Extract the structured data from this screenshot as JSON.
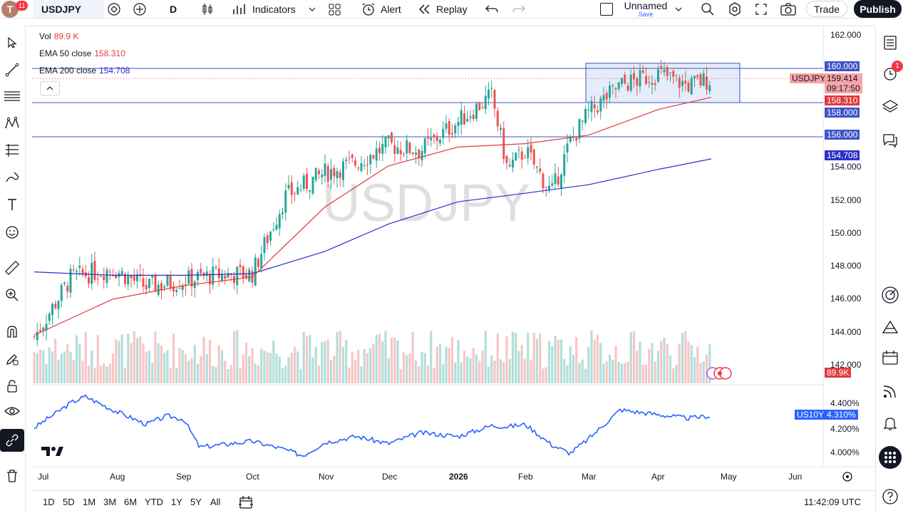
{
  "header": {
    "avatar_letter": "T",
    "notif_count": "11",
    "symbol": "USDJPY",
    "interval": "D",
    "indicators_label": "Indicators",
    "alert_label": "Alert",
    "replay_label": "Replay",
    "layout_name": "Unnamed",
    "save_label": "Save",
    "trade_label": "Trade",
    "publish_label": "Publish"
  },
  "legend": {
    "vol_label": "Vol",
    "vol_value": "89.9 K",
    "ema50_label": "EMA 50 close",
    "ema50_value": "158.310",
    "ema200_label": "EMA 200 close",
    "ema200_value": "154.708"
  },
  "watermark": "USDJPY",
  "colors": {
    "up": "#26a69a",
    "down": "#ef5350",
    "ema50": "#e03a3e",
    "ema200": "#2d2fc8",
    "hline": "#3e53c8",
    "rect_fill": "#dce6f8",
    "bond": "#2962ff"
  },
  "price_axis": [
    "162.000",
    "160.000",
    "159.414",
    "158.310",
    "158.000",
    "156.000",
    "154.708",
    "154.000",
    "152.000",
    "150.000",
    "148.000",
    "146.000",
    "144.000",
    "142.000"
  ],
  "tags": {
    "level_160": "160.000",
    "symbol": "USDJPY",
    "last_price": "159.414",
    "countdown": "09:17:50",
    "ema50": "158.310",
    "level_158": "158.000",
    "level_156": "156.000",
    "ema200": "154.708",
    "volume": "89.9K",
    "bond_symbol": "US10Y",
    "bond_value": "4.310%"
  },
  "bond_axis": [
    "4.400%",
    "4.200%",
    "4.000%"
  ],
  "time_axis": [
    "Jul",
    "Aug",
    "Sep",
    "Oct",
    "Nov",
    "Dec",
    "2026",
    "Feb",
    "Mar",
    "Apr",
    "May",
    "Jun"
  ],
  "ranges": [
    "1D",
    "5D",
    "1M",
    "3M",
    "6M",
    "YTD",
    "1Y",
    "5Y",
    "All"
  ],
  "clock": "11:42:09 UTC",
  "right_badge": "1",
  "chart_data": {
    "type": "candlestick",
    "symbol": "USDJPY",
    "interval": "D",
    "last_price": 159.414,
    "y_range": [
      141.5,
      162.5
    ],
    "horizontal_levels": [
      160.0,
      158.0,
      156.0
    ],
    "highlight_box": {
      "from": "Mar",
      "to": "Apr",
      "low": 158.0,
      "high": 160.3
    },
    "x_labels": [
      "Jul",
      "Aug",
      "Sep",
      "Oct",
      "Nov",
      "Dec",
      "2026",
      "Feb",
      "Mar",
      "Apr",
      "May",
      "Jun"
    ],
    "anchors": [
      {
        "x": "Jul",
        "close": 144.3
      },
      {
        "x": "Jul-mid",
        "close": 147.8
      },
      {
        "x": "Aug",
        "close": 148.3
      },
      {
        "x": "Aug-mid",
        "close": 147.2
      },
      {
        "x": "Sep",
        "close": 147.6
      },
      {
        "x": "Sep-end",
        "close": 147.9
      },
      {
        "x": "Oct",
        "close": 148.0
      },
      {
        "x": "Oct-mid",
        "close": 152.5
      },
      {
        "x": "Nov",
        "close": 153.9
      },
      {
        "x": "Nov-mid",
        "close": 154.5
      },
      {
        "x": "Dec",
        "close": 155.5
      },
      {
        "x": "Dec-mid",
        "close": 155.2
      },
      {
        "x": "2026",
        "close": 156.9
      },
      {
        "x": "Jan-mid",
        "close": 158.4
      },
      {
        "x": "Jan-end",
        "close": 154.1
      },
      {
        "x": "Feb",
        "close": 155.2
      },
      {
        "x": "Feb-mid",
        "close": 152.7
      },
      {
        "x": "Feb-end",
        "close": 155.7
      },
      {
        "x": "Mar",
        "close": 157.4
      },
      {
        "x": "Mar-mid",
        "close": 159.0
      },
      {
        "x": "Apr",
        "close": 159.7
      },
      {
        "x": "Apr-mid",
        "close": 159.0
      },
      {
        "x": "Apr-end",
        "close": 159.4
      }
    ],
    "ema50": [
      {
        "x": "Jul",
        "y": 144.4
      },
      {
        "x": "Aug",
        "y": 146.5
      },
      {
        "x": "Sep",
        "y": 147.3
      },
      {
        "x": "Oct",
        "y": 147.8
      },
      {
        "x": "Nov",
        "y": 151.9
      },
      {
        "x": "Dec",
        "y": 154.3
      },
      {
        "x": "2026",
        "y": 155.4
      },
      {
        "x": "Feb",
        "y": 155.6
      },
      {
        "x": "Mar",
        "y": 156.1
      },
      {
        "x": "Apr",
        "y": 157.6
      },
      {
        "x": "Apr-end",
        "y": 158.31
      }
    ],
    "ema200": [
      {
        "x": "Jul",
        "y": 148.1
      },
      {
        "x": "Aug",
        "y": 147.9
      },
      {
        "x": "Sep",
        "y": 147.9
      },
      {
        "x": "Oct",
        "y": 148.0
      },
      {
        "x": "Nov",
        "y": 149.3
      },
      {
        "x": "Dec",
        "y": 150.9
      },
      {
        "x": "2026",
        "y": 152.2
      },
      {
        "x": "Feb",
        "y": 152.7
      },
      {
        "x": "Mar",
        "y": 153.2
      },
      {
        "x": "Apr",
        "y": 154.1
      },
      {
        "x": "Apr-end",
        "y": 154.708
      }
    ],
    "volume_last": "89.9K",
    "us10y": {
      "y_range": [
        3.93,
        4.52
      ],
      "points": [
        {
          "x": "Jul",
          "y": 4.21
        },
        {
          "x": "Jul-mid",
          "y": 4.42
        },
        {
          "x": "Jul-end",
          "y": 4.47
        },
        {
          "x": "Aug",
          "y": 4.36
        },
        {
          "x": "Aug-mid",
          "y": 4.24
        },
        {
          "x": "Aug-end",
          "y": 4.31
        },
        {
          "x": "Sep",
          "y": 4.28
        },
        {
          "x": "Sep-mid",
          "y": 4.05
        },
        {
          "x": "Oct",
          "y": 4.1
        },
        {
          "x": "Oct-mid",
          "y": 4.03
        },
        {
          "x": "Oct-end",
          "y": 3.98
        },
        {
          "x": "Nov",
          "y": 4.09
        },
        {
          "x": "Nov-mid",
          "y": 4.14
        },
        {
          "x": "Dec",
          "y": 4.08
        },
        {
          "x": "Dec-mid",
          "y": 4.17
        },
        {
          "x": "2026",
          "y": 4.14
        },
        {
          "x": "Jan-mid",
          "y": 4.23
        },
        {
          "x": "Jan-end",
          "y": 4.22
        },
        {
          "x": "Feb",
          "y": 4.24
        },
        {
          "x": "Feb-mid",
          "y": 4.07
        },
        {
          "x": "Feb-end",
          "y": 4.0
        },
        {
          "x": "Mar",
          "y": 4.12
        },
        {
          "x": "Mar-mid",
          "y": 4.36
        },
        {
          "x": "Apr",
          "y": 4.32
        },
        {
          "x": "Apr-mid",
          "y": 4.29
        },
        {
          "x": "Apr-end",
          "y": 4.31
        }
      ]
    }
  }
}
